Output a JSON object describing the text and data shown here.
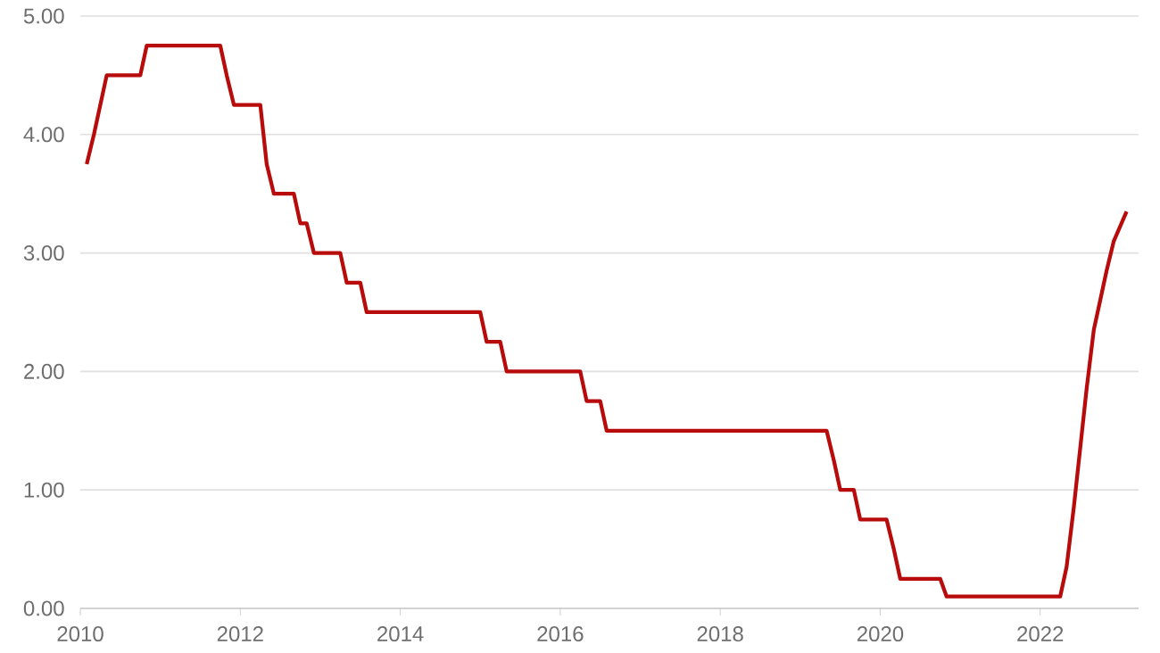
{
  "chart_data": {
    "type": "line",
    "x": [
      "2010-02",
      "2010-03",
      "2010-04",
      "2010-05",
      "2010-10",
      "2010-11",
      "2011-10",
      "2011-11",
      "2011-12",
      "2012-04",
      "2012-05",
      "2012-06",
      "2012-09",
      "2012-10",
      "2012-11",
      "2012-12",
      "2013-04",
      "2013-05",
      "2013-07",
      "2013-08",
      "2015-01",
      "2015-02",
      "2015-04",
      "2015-05",
      "2016-04",
      "2016-05",
      "2016-07",
      "2016-08",
      "2019-05",
      "2019-06",
      "2019-07",
      "2019-09",
      "2019-10",
      "2020-02",
      "2020-03",
      "2020-04",
      "2020-10",
      "2020-11",
      "2022-04",
      "2022-05",
      "2022-06",
      "2022-07",
      "2022-08",
      "2022-09",
      "2022-10",
      "2022-11",
      "2022-12",
      "2023-02"
    ],
    "series": [
      {
        "color": "#b80c0c",
        "values": [
          3.75,
          4.0,
          4.25,
          4.5,
          4.5,
          4.75,
          4.75,
          4.5,
          4.25,
          4.25,
          3.75,
          3.5,
          3.5,
          3.25,
          3.25,
          3.0,
          3.0,
          2.75,
          2.75,
          2.5,
          2.5,
          2.25,
          2.25,
          2.0,
          2.0,
          1.75,
          1.75,
          1.5,
          1.5,
          1.25,
          1.0,
          1.0,
          0.75,
          0.75,
          0.5,
          0.25,
          0.25,
          0.1,
          0.1,
          0.35,
          0.85,
          1.35,
          1.85,
          2.35,
          2.6,
          2.85,
          3.1,
          3.35
        ]
      }
    ],
    "xlim": [
      "2010",
      "2023-03-25"
    ],
    "xticks": [
      {
        "value": "2010",
        "label": "2010"
      },
      {
        "value": "2012",
        "label": "2012"
      },
      {
        "value": "2014",
        "label": "2014"
      },
      {
        "value": "2016",
        "label": "2016"
      },
      {
        "value": "2018",
        "label": "2018"
      },
      {
        "value": "2020",
        "label": "2020"
      },
      {
        "value": "2022",
        "label": "2022"
      }
    ],
    "ylim": [
      0,
      5
    ],
    "yticks": [
      {
        "value": 0,
        "label": "0.00"
      },
      {
        "value": 1,
        "label": "1.00"
      },
      {
        "value": 2,
        "label": "2.00"
      },
      {
        "value": 3,
        "label": "3.00"
      },
      {
        "value": 4,
        "label": "4.00"
      },
      {
        "value": 5,
        "label": "5.00"
      }
    ],
    "grid": "y",
    "marker": "none",
    "line_style": "solid"
  }
}
